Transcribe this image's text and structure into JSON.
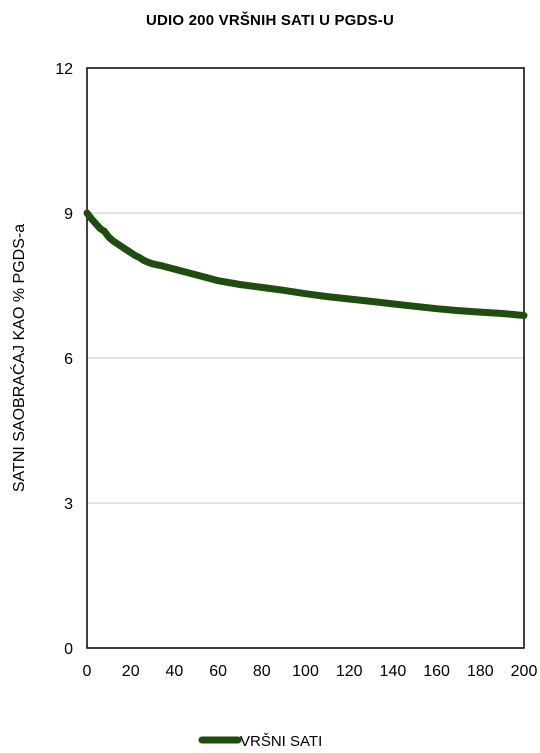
{
  "chart_data": {
    "type": "line",
    "title": "UDIO 200 VRŠNIH  SATI U PGDS-U",
    "xlabel": "",
    "ylabel": "SATNI SAOBRAĆAJ KAO % PGDS-a",
    "xlim": [
      0,
      200
    ],
    "ylim": [
      0,
      12
    ],
    "x_ticks": [
      0,
      20,
      40,
      60,
      80,
      100,
      120,
      140,
      160,
      180,
      200
    ],
    "y_ticks": [
      0,
      3,
      6,
      9,
      12
    ],
    "grid": "horizontal",
    "legend_position": "bottom",
    "colors": {
      "series": "#1e4d0f",
      "grid": "#c8c8c8",
      "axis": "#000000"
    },
    "series": [
      {
        "name": "VRŠNI SATI",
        "x": [
          0,
          2,
          4,
          6,
          8,
          10,
          12,
          14,
          16,
          18,
          20,
          22,
          24,
          26,
          28,
          30,
          35,
          40,
          45,
          50,
          55,
          60,
          70,
          80,
          90,
          100,
          110,
          120,
          130,
          140,
          150,
          160,
          170,
          180,
          190,
          200
        ],
        "values": [
          9.0,
          8.88,
          8.78,
          8.68,
          8.62,
          8.5,
          8.42,
          8.36,
          8.3,
          8.24,
          8.18,
          8.12,
          8.08,
          8.02,
          7.98,
          7.95,
          7.9,
          7.84,
          7.78,
          7.72,
          7.66,
          7.6,
          7.52,
          7.46,
          7.4,
          7.33,
          7.27,
          7.22,
          7.17,
          7.12,
          7.07,
          7.02,
          6.98,
          6.95,
          6.92,
          6.88
        ]
      }
    ]
  }
}
